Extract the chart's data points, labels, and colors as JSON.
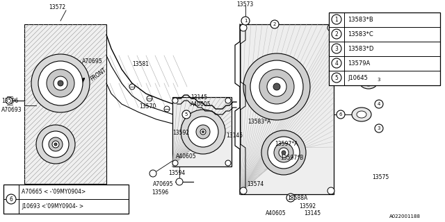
{
  "bg_color": "#ffffff",
  "line_color": "#000000",
  "legend_items": [
    {
      "num": "1",
      "label": "13583*B"
    },
    {
      "num": "2",
      "label": "13583*C"
    },
    {
      "num": "3",
      "label": "13583*D"
    },
    {
      "num": "4",
      "label": "13579A"
    },
    {
      "num": "5",
      "label": "J10645"
    }
  ],
  "bottom_lines": [
    "A70665 < -'09MY0904>",
    "J10693 <'09MY0904- >"
  ],
  "watermark": "A022001188"
}
